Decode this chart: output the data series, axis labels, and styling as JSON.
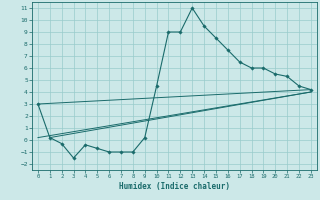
{
  "xlabel": "Humidex (Indice chaleur)",
  "xlim": [
    -0.5,
    23.5
  ],
  "ylim": [
    -2.5,
    11.5
  ],
  "xticks": [
    0,
    1,
    2,
    3,
    4,
    5,
    6,
    7,
    8,
    9,
    10,
    11,
    12,
    13,
    14,
    15,
    16,
    17,
    18,
    19,
    20,
    21,
    22,
    23
  ],
  "yticks": [
    -2,
    -1,
    0,
    1,
    2,
    3,
    4,
    5,
    6,
    7,
    8,
    9,
    10,
    11
  ],
  "background_color": "#cce8e8",
  "grid_color": "#99cccc",
  "line_color": "#1a6b6b",
  "line1_x": [
    0,
    1,
    2,
    3,
    4,
    5,
    6,
    7,
    8,
    9,
    10,
    11,
    12,
    13,
    14,
    15,
    16,
    17,
    18,
    19,
    20,
    21,
    22,
    23
  ],
  "line1_y": [
    3.0,
    0.2,
    -0.3,
    -1.5,
    -0.4,
    -0.7,
    -1.0,
    -1.0,
    -1.0,
    0.2,
    4.5,
    9.0,
    9.0,
    11.0,
    9.5,
    8.5,
    7.5,
    6.5,
    6.0,
    6.0,
    5.5,
    5.3,
    4.5,
    4.2
  ],
  "line2_x": [
    0,
    23
  ],
  "line2_y": [
    3.0,
    4.2
  ],
  "line3_x": [
    0,
    23
  ],
  "line3_y": [
    0.2,
    4.0
  ],
  "line4_x": [
    1,
    23
  ],
  "line4_y": [
    0.2,
    4.0
  ]
}
